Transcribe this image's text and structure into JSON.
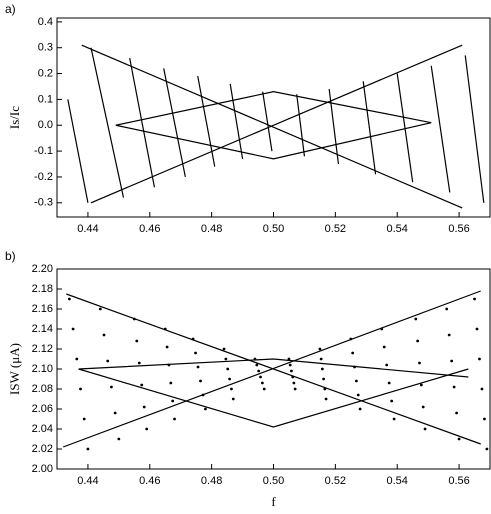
{
  "chart_data": [
    {
      "type": "line",
      "label": "a)",
      "ylabel": "Is/Ic",
      "color": "#000000",
      "xlim": [
        0.43,
        0.57
      ],
      "ylim": [
        -0.355,
        0.415
      ],
      "xticks": [
        0.44,
        0.46,
        0.48,
        {
          "value": 0.5,
          "label": "0.50"
        },
        0.52,
        0.54,
        0.56
      ],
      "yticks": [
        -0.3,
        -0.2,
        -0.1,
        {
          "value": 0,
          "label": "0.0"
        },
        0.1,
        0.2,
        0.3,
        0.4
      ],
      "lines": [
        {
          "x": [
            0.438,
            0.561
          ],
          "y": [
            0.31,
            -0.32
          ]
        },
        {
          "x": [
            0.441,
            0.561
          ],
          "y": [
            -0.3,
            0.31
          ]
        },
        {
          "x": [
            0.449,
            0.5,
            0.551,
            0.5,
            0.449
          ],
          "y": [
            0,
            0.13,
            0.01,
            -0.13,
            0
          ]
        },
        {
          "x": [
            0.4335,
            0.44
          ],
          "y": [
            0.1,
            -0.3
          ]
        },
        {
          "x": [
            0.441,
            0.4515
          ],
          "y": [
            0.3,
            -0.28
          ]
        },
        {
          "x": [
            0.4535,
            0.4615
          ],
          "y": [
            0.26,
            -0.24
          ]
        },
        {
          "x": [
            0.4645,
            0.4715
          ],
          "y": [
            0.22,
            -0.2
          ]
        },
        {
          "x": [
            0.4755,
            0.481
          ],
          "y": [
            0.19,
            -0.16
          ]
        },
        {
          "x": [
            0.486,
            0.49
          ],
          "y": [
            0.16,
            -0.13
          ]
        },
        {
          "x": [
            0.4965,
            0.4995
          ],
          "y": [
            0.13,
            -0.1
          ]
        },
        {
          "x": [
            0.5075,
            0.51
          ],
          "y": [
            0.12,
            -0.12
          ]
        },
        {
          "x": [
            0.518,
            0.521
          ],
          "y": [
            0.14,
            -0.15
          ]
        },
        {
          "x": [
            0.529,
            0.533
          ],
          "y": [
            0.17,
            -0.19
          ]
        },
        {
          "x": [
            0.54,
            0.545
          ],
          "y": [
            0.2,
            -0.22
          ]
        },
        {
          "x": [
            0.551,
            0.557
          ],
          "y": [
            0.23,
            -0.26
          ]
        },
        {
          "x": [
            0.562,
            0.568
          ],
          "y": [
            0.27,
            -0.3
          ]
        }
      ]
    },
    {
      "type": "scatter",
      "label": "b)",
      "ylabel": "ISW (μA)",
      "xlabel": "f",
      "color": "#000000",
      "xlim": [
        0.43,
        0.57
      ],
      "ylim": [
        2.0,
        2.2
      ],
      "xticks": [
        0.44,
        0.46,
        0.48,
        {
          "value": 0.5,
          "label": "0.50"
        },
        0.52,
        0.54,
        0.56
      ],
      "yticks": [
        {
          "value": 2,
          "label": "2.00"
        },
        2.02,
        2.04,
        2.06,
        2.08,
        {
          "value": 2.1,
          "label": "2.10"
        },
        2.12,
        2.14,
        2.16,
        2.18,
        {
          "value": 2.2,
          "label": "2.20"
        }
      ],
      "lines": [
        {
          "x": [
            0.433,
            0.567
          ],
          "y": [
            2.175,
            2.025
          ]
        },
        {
          "x": [
            0.432,
            0.567
          ],
          "y": [
            2.022,
            2.178
          ]
        },
        {
          "x": [
            0.437,
            0.5,
            0.563
          ],
          "y": [
            2.1,
            2.042,
            2.1
          ]
        },
        {
          "x": [
            0.437,
            0.5,
            0.563
          ],
          "y": [
            2.1,
            2.11,
            2.092
          ]
        }
      ],
      "x": [
        0.434,
        0.4352,
        0.4364,
        0.4376,
        0.4388,
        0.44,
        0.444,
        0.4452,
        0.4464,
        0.4476,
        0.4488,
        0.45,
        0.455,
        0.4558,
        0.4566,
        0.4574,
        0.4582,
        0.459,
        0.465,
        0.4656,
        0.4662,
        0.4668,
        0.4674,
        0.468,
        0.474,
        0.4748,
        0.4756,
        0.4764,
        0.4772,
        0.478,
        0.484,
        0.4846,
        0.4852,
        0.4858,
        0.4864,
        0.487,
        0.494,
        0.4946,
        0.4952,
        0.4958,
        0.4964,
        0.497,
        0.505,
        0.5054,
        0.5058,
        0.5062,
        0.5066,
        0.507,
        0.515,
        0.5154,
        0.5158,
        0.5162,
        0.5166,
        0.517,
        0.525,
        0.5256,
        0.5262,
        0.5268,
        0.5274,
        0.528,
        0.535,
        0.5358,
        0.5366,
        0.5374,
        0.5382,
        0.539,
        0.546,
        0.5466,
        0.5472,
        0.5478,
        0.5484,
        0.549,
        0.556,
        0.5568,
        0.5576,
        0.5584,
        0.5592,
        0.56,
        0.565,
        0.5658,
        0.5666,
        0.5674,
        0.5682,
        0.569
      ],
      "y": [
        2.17,
        2.14,
        2.11,
        2.08,
        2.05,
        2.02,
        2.16,
        2.134,
        2.108,
        2.082,
        2.056,
        2.03,
        2.15,
        2.128,
        2.106,
        2.084,
        2.062,
        2.04,
        2.14,
        2.122,
        2.104,
        2.086,
        2.068,
        2.05,
        2.13,
        2.116,
        2.102,
        2.088,
        2.074,
        2.06,
        2.12,
        2.11,
        2.1,
        2.09,
        2.08,
        2.07,
        2.11,
        2.104,
        2.098,
        2.092,
        2.086,
        2.08,
        2.11,
        2.104,
        2.098,
        2.092,
        2.086,
        2.08,
        2.12,
        2.11,
        2.1,
        2.09,
        2.08,
        2.07,
        2.13,
        2.116,
        2.102,
        2.088,
        2.074,
        2.06,
        2.14,
        2.122,
        2.104,
        2.086,
        2.068,
        2.05,
        2.15,
        2.128,
        2.106,
        2.084,
        2.062,
        2.04,
        2.16,
        2.134,
        2.108,
        2.082,
        2.056,
        2.03,
        2.17,
        2.14,
        2.11,
        2.08,
        2.05,
        2.02
      ]
    }
  ]
}
